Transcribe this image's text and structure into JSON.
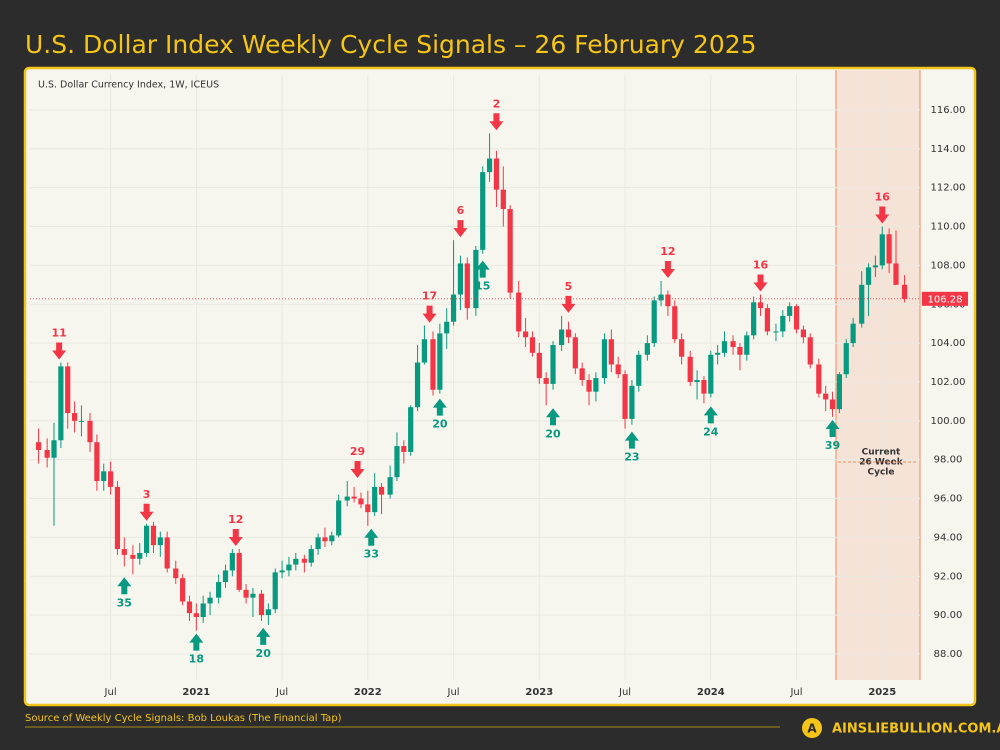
{
  "chart_data": {
    "type": "candlestick",
    "title": "U.S. Dollar Index Weekly Cycle Signals – 26 February 2025",
    "subtitle": "U.S. Dollar Currency Index, 1W, ICEUS",
    "colors": {
      "up": "#089981",
      "down": "#f23645"
    },
    "x": [
      2020.08,
      2020.13,
      2020.17,
      2020.21,
      2020.25,
      2020.29,
      2020.33,
      2020.38,
      2020.42,
      2020.46,
      2020.5,
      2020.54,
      2020.58,
      2020.63,
      2020.67,
      2020.71,
      2020.75,
      2020.79,
      2020.83,
      2020.88,
      2020.92,
      2020.96,
      2021,
      2021.04,
      2021.08,
      2021.13,
      2021.17,
      2021.21,
      2021.25,
      2021.29,
      2021.33,
      2021.38,
      2021.42,
      2021.46,
      2021.5,
      2021.54,
      2021.58,
      2021.63,
      2021.67,
      2021.71,
      2021.75,
      2021.79,
      2021.83,
      2021.88,
      2021.92,
      2021.96,
      2022,
      2022.04,
      2022.08,
      2022.13,
      2022.17,
      2022.21,
      2022.25,
      2022.29,
      2022.33,
      2022.38,
      2022.42,
      2022.46,
      2022.5,
      2022.54,
      2022.58,
      2022.63,
      2022.67,
      2022.71,
      2022.75,
      2022.79,
      2022.83,
      2022.88,
      2022.92,
      2022.96,
      2023,
      2023.04,
      2023.08,
      2023.13,
      2023.17,
      2023.21,
      2023.25,
      2023.29,
      2023.33,
      2023.38,
      2023.42,
      2023.46,
      2023.5,
      2023.54,
      2023.58,
      2023.63,
      2023.67,
      2023.71,
      2023.75,
      2023.79,
      2023.83,
      2023.88,
      2023.92,
      2023.96,
      2024,
      2024.04,
      2024.08,
      2024.13,
      2024.17,
      2024.21,
      2024.25,
      2024.29,
      2024.33,
      2024.38,
      2024.42,
      2024.46,
      2024.5,
      2024.54,
      2024.58,
      2024.63,
      2024.67,
      2024.71,
      2024.75,
      2024.79,
      2024.83,
      2024.88,
      2024.92,
      2024.96,
      2025,
      2025.04,
      2025.08,
      2025.13
    ],
    "ohlc": [
      [
        98.9,
        99.6,
        97.8,
        98.5
      ],
      [
        98.5,
        99.1,
        97.6,
        98.1
      ],
      [
        98.1,
        99.9,
        94.6,
        99.0
      ],
      [
        99.0,
        103.0,
        98.6,
        102.8
      ],
      [
        102.8,
        103.0,
        99.6,
        100.4
      ],
      [
        100.4,
        101.0,
        99.4,
        100.0
      ],
      [
        100.0,
        100.8,
        99.2,
        100.0
      ],
      [
        100.0,
        100.4,
        98.4,
        98.9
      ],
      [
        98.9,
        99.3,
        96.4,
        96.9
      ],
      [
        96.9,
        97.8,
        96.4,
        97.4
      ],
      [
        97.4,
        97.9,
        96.2,
        96.6
      ],
      [
        96.6,
        96.9,
        93.1,
        93.4
      ],
      [
        93.4,
        94.0,
        92.5,
        93.1
      ],
      [
        93.1,
        93.6,
        92.1,
        92.9
      ],
      [
        92.9,
        93.7,
        92.6,
        93.2
      ],
      [
        93.2,
        94.7,
        93.0,
        94.6
      ],
      [
        94.6,
        94.8,
        93.2,
        93.6
      ],
      [
        93.6,
        94.3,
        93.0,
        94.0
      ],
      [
        94.0,
        94.3,
        92.2,
        92.4
      ],
      [
        92.4,
        92.8,
        91.6,
        91.9
      ],
      [
        91.9,
        92.1,
        90.5,
        90.7
      ],
      [
        90.7,
        91.0,
        89.7,
        90.1
      ],
      [
        90.1,
        90.6,
        89.2,
        89.9
      ],
      [
        89.9,
        91.0,
        89.6,
        90.6
      ],
      [
        90.6,
        91.2,
        90.0,
        90.9
      ],
      [
        90.9,
        92.1,
        90.6,
        91.7
      ],
      [
        91.7,
        92.6,
        91.4,
        92.3
      ],
      [
        92.3,
        93.4,
        92.0,
        93.2
      ],
      [
        93.2,
        93.4,
        91.2,
        91.3
      ],
      [
        91.3,
        91.6,
        90.6,
        90.9
      ],
      [
        90.9,
        91.4,
        89.9,
        91.1
      ],
      [
        91.1,
        91.3,
        89.7,
        90.0
      ],
      [
        90.0,
        90.6,
        89.5,
        90.3
      ],
      [
        90.3,
        92.4,
        90.1,
        92.2
      ],
      [
        92.2,
        92.8,
        91.9,
        92.3
      ],
      [
        92.3,
        93.0,
        92.0,
        92.6
      ],
      [
        92.6,
        93.2,
        92.3,
        92.9
      ],
      [
        92.9,
        93.1,
        92.2,
        92.7
      ],
      [
        92.7,
        93.6,
        92.5,
        93.4
      ],
      [
        93.4,
        94.2,
        93.1,
        94.0
      ],
      [
        94.0,
        94.5,
        93.5,
        93.8
      ],
      [
        93.8,
        94.3,
        93.6,
        94.1
      ],
      [
        94.1,
        96.2,
        94.0,
        95.9
      ],
      [
        95.9,
        96.9,
        95.6,
        96.1
      ],
      [
        96.1,
        96.6,
        95.8,
        96.0
      ],
      [
        96.0,
        96.3,
        95.5,
        95.7
      ],
      [
        95.7,
        96.4,
        94.6,
        95.3
      ],
      [
        95.3,
        97.3,
        95.1,
        96.6
      ],
      [
        96.6,
        96.8,
        95.2,
        96.2
      ],
      [
        96.2,
        97.7,
        96.0,
        97.1
      ],
      [
        97.1,
        99.4,
        96.9,
        98.7
      ],
      [
        98.7,
        99.0,
        97.8,
        98.4
      ],
      [
        98.4,
        100.8,
        98.2,
        100.7
      ],
      [
        100.7,
        103.9,
        100.5,
        103.0
      ],
      [
        103.0,
        104.9,
        102.9,
        104.2
      ],
      [
        104.2,
        104.6,
        101.3,
        101.6
      ],
      [
        101.6,
        105.0,
        101.4,
        104.5
      ],
      [
        104.5,
        105.8,
        103.7,
        105.1
      ],
      [
        105.1,
        109.3,
        104.9,
        106.5
      ],
      [
        106.5,
        108.5,
        105.7,
        108.1
      ],
      [
        108.1,
        108.4,
        105.2,
        105.8
      ],
      [
        105.8,
        109.0,
        105.4,
        108.8
      ],
      [
        108.8,
        113.1,
        108.6,
        112.8
      ],
      [
        112.8,
        114.8,
        112.3,
        113.5
      ],
      [
        113.5,
        113.9,
        111.0,
        111.9
      ],
      [
        111.9,
        113.1,
        110.0,
        110.9
      ],
      [
        110.9,
        111.1,
        106.3,
        106.6
      ],
      [
        106.6,
        107.2,
        104.3,
        104.6
      ],
      [
        104.6,
        105.3,
        103.8,
        104.3
      ],
      [
        104.3,
        104.6,
        103.3,
        103.5
      ],
      [
        103.5,
        104.0,
        101.9,
        102.2
      ],
      [
        102.2,
        102.5,
        100.8,
        101.9
      ],
      [
        101.9,
        104.1,
        101.6,
        103.9
      ],
      [
        103.9,
        105.4,
        103.6,
        104.7
      ],
      [
        104.7,
        105.1,
        104.0,
        104.3
      ],
      [
        104.3,
        104.5,
        102.4,
        102.7
      ],
      [
        102.7,
        103.0,
        101.8,
        102.1
      ],
      [
        102.1,
        102.4,
        100.8,
        101.5
      ],
      [
        101.5,
        102.5,
        101.0,
        102.2
      ],
      [
        102.2,
        104.5,
        101.9,
        104.2
      ],
      [
        104.2,
        104.7,
        102.5,
        102.9
      ],
      [
        102.9,
        103.3,
        102.2,
        102.4
      ],
      [
        102.4,
        102.6,
        99.6,
        100.1
      ],
      [
        100.1,
        102.1,
        99.8,
        101.8
      ],
      [
        101.8,
        103.6,
        101.5,
        103.4
      ],
      [
        103.4,
        104.4,
        103.1,
        104.0
      ],
      [
        104.0,
        106.4,
        103.8,
        106.2
      ],
      [
        106.2,
        107.2,
        105.9,
        106.5
      ],
      [
        106.5,
        106.7,
        105.4,
        105.9
      ],
      [
        105.9,
        106.2,
        104.0,
        104.2
      ],
      [
        104.2,
        104.5,
        102.9,
        103.3
      ],
      [
        103.3,
        103.6,
        101.8,
        102.0
      ],
      [
        102.0,
        102.6,
        101.1,
        102.1
      ],
      [
        102.1,
        102.3,
        100.9,
        101.4
      ],
      [
        101.4,
        103.6,
        101.2,
        103.4
      ],
      [
        103.4,
        103.9,
        102.9,
        103.5
      ],
      [
        103.5,
        104.6,
        103.3,
        104.1
      ],
      [
        104.1,
        104.4,
        103.4,
        103.8
      ],
      [
        103.8,
        104.0,
        102.6,
        103.4
      ],
      [
        103.4,
        104.6,
        103.1,
        104.4
      ],
      [
        104.4,
        106.4,
        104.2,
        106.1
      ],
      [
        106.1,
        106.5,
        105.4,
        105.8
      ],
      [
        105.8,
        106.0,
        104.4,
        104.6
      ],
      [
        104.6,
        105.0,
        104.1,
        104.6
      ],
      [
        104.6,
        105.7,
        104.3,
        105.4
      ],
      [
        105.4,
        106.1,
        105.1,
        105.9
      ],
      [
        105.9,
        106.0,
        104.5,
        104.7
      ],
      [
        104.7,
        104.9,
        104.0,
        104.3
      ],
      [
        104.3,
        104.5,
        102.7,
        102.9
      ],
      [
        102.9,
        103.2,
        101.2,
        101.4
      ],
      [
        101.4,
        101.8,
        100.5,
        101.1
      ],
      [
        101.1,
        101.5,
        100.2,
        100.6
      ],
      [
        100.6,
        102.5,
        100.4,
        102.4
      ],
      [
        102.4,
        104.2,
        102.2,
        104.0
      ],
      [
        104.0,
        105.3,
        103.8,
        105.0
      ],
      [
        105.0,
        107.7,
        104.8,
        107.0
      ],
      [
        107.0,
        108.1,
        105.4,
        107.9
      ],
      [
        107.9,
        108.5,
        107.4,
        108.0
      ],
      [
        108.0,
        110.0,
        107.8,
        109.6
      ],
      [
        109.6,
        109.9,
        107.6,
        108.1
      ],
      [
        108.1,
        109.8,
        107.0,
        107.0
      ],
      [
        107.0,
        107.5,
        106.1,
        106.28
      ]
    ],
    "xlim": [
      2020.03,
      2025.22
    ],
    "xticks": [
      {
        "value": 2020.5,
        "label": "Jul"
      },
      2021,
      {
        "value": 2021.5,
        "label": "Jul"
      },
      2022,
      {
        "value": 2022.5,
        "label": "Jul"
      },
      2023,
      {
        "value": 2023.5,
        "label": "Jul"
      },
      2024,
      {
        "value": 2024.5,
        "label": "Jul"
      },
      2025
    ],
    "ylim": [
      86.66,
      117.8
    ],
    "yticks": [
      {
        "value": 88,
        "label": "88.00"
      },
      {
        "value": 90,
        "label": "90.00"
      },
      {
        "value": 92,
        "label": "92.00"
      },
      {
        "value": 94,
        "label": "94.00"
      },
      {
        "value": 96,
        "label": "96.00"
      },
      {
        "value": 98,
        "label": "98.00"
      },
      {
        "value": 100,
        "label": "100.00"
      },
      {
        "value": 102,
        "label": "102.00"
      },
      {
        "value": 104,
        "label": "104.00"
      },
      {
        "value": 106,
        "label": "106.00"
      },
      {
        "value": 108,
        "label": "108.00"
      },
      {
        "value": 110,
        "label": "110.00"
      },
      {
        "value": 112,
        "label": "112.00"
      },
      {
        "value": 114,
        "label": "114.00"
      },
      {
        "value": 116,
        "label": "116.00"
      }
    ],
    "grid": true,
    "signals": [
      {
        "x": 2020.2,
        "y": 103.0,
        "text": 11,
        "direction": "down"
      },
      {
        "x": 2020.71,
        "y": 94.7,
        "text": 3,
        "direction": "down"
      },
      {
        "x": 2021.23,
        "y": 93.4,
        "text": 12,
        "direction": "down"
      },
      {
        "x": 2021.94,
        "y": 96.9,
        "text": 29,
        "direction": "down"
      },
      {
        "x": 2022.36,
        "y": 104.9,
        "text": 17,
        "direction": "down"
      },
      {
        "x": 2022.54,
        "y": 109.3,
        "text": 6,
        "direction": "down"
      },
      {
        "x": 2022.75,
        "y": 114.8,
        "text": 2,
        "direction": "down"
      },
      {
        "x": 2023.17,
        "y": 105.4,
        "text": 5,
        "direction": "down"
      },
      {
        "x": 2023.75,
        "y": 107.2,
        "text": 12,
        "direction": "down"
      },
      {
        "x": 2024.29,
        "y": 106.5,
        "text": 16,
        "direction": "down"
      },
      {
        "x": 2025.0,
        "y": 110.0,
        "text": 16,
        "direction": "down"
      },
      {
        "x": 2020.58,
        "y": 92.1,
        "text": 35,
        "direction": "up"
      },
      {
        "x": 2021.0,
        "y": 89.2,
        "text": 18,
        "direction": "up"
      },
      {
        "x": 2021.39,
        "y": 89.5,
        "text": 20,
        "direction": "up"
      },
      {
        "x": 2022.02,
        "y": 94.6,
        "text": 33,
        "direction": "up"
      },
      {
        "x": 2022.42,
        "y": 101.3,
        "text": 20,
        "direction": "up"
      },
      {
        "x": 2022.67,
        "y": 108.4,
        "text": 15,
        "direction": "up"
      },
      {
        "x": 2023.08,
        "y": 100.8,
        "text": 20,
        "direction": "up"
      },
      {
        "x": 2023.54,
        "y": 99.6,
        "text": 23,
        "direction": "up"
      },
      {
        "x": 2024.0,
        "y": 100.9,
        "text": 24,
        "direction": "up"
      },
      {
        "x": 2024.71,
        "y": 100.2,
        "text": 39,
        "direction": "up"
      }
    ],
    "cycle": {
      "start": 2024.73,
      "label": [
        "Current",
        "26 Week",
        "Cycle"
      ]
    }
  },
  "footer": {
    "source": "Source of Weekly Cycle Signals: Bob Loukas (The Financial Tap)",
    "brand": "AINSLIEBULLION.COM.AU",
    "logo": "A"
  }
}
